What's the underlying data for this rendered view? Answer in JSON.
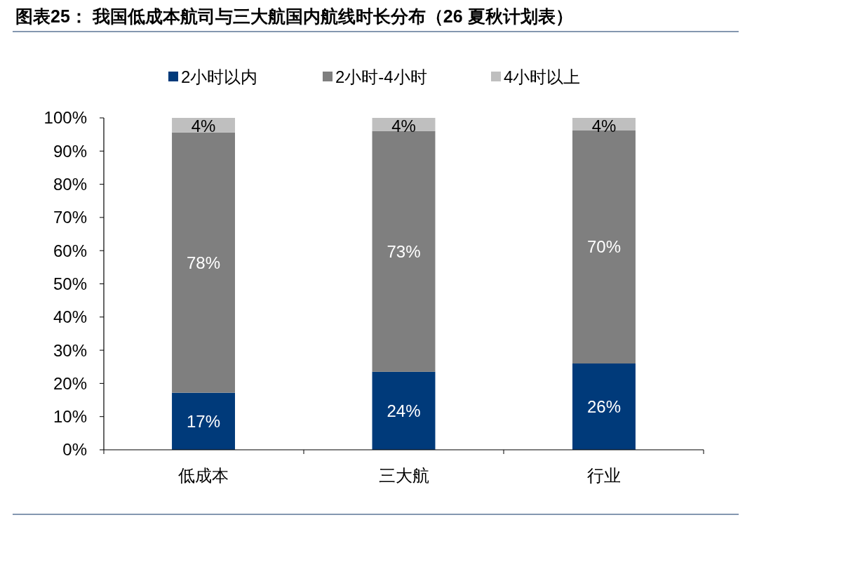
{
  "chart_data": {
    "type": "bar",
    "stacked": true,
    "title": "图表25： 我国低成本航司与三大航国内航线时长分布（26 夏秋计划表）",
    "categories": [
      "低成本",
      "三大航",
      "行业"
    ],
    "series": [
      {
        "name": "2小时以内",
        "color": "#003a7a",
        "values": [
          17.2,
          23.5,
          26.0
        ],
        "value_labels": [
          "17%",
          "24%",
          "26%"
        ]
      },
      {
        "name": "2小时-4小时",
        "color": "#7f7f7f",
        "values": [
          78.4,
          72.5,
          70.2
        ],
        "value_labels": [
          "78%",
          "73%",
          "70%"
        ]
      },
      {
        "name": "4小时以上",
        "color": "#bfbfbf",
        "values": [
          4.4,
          4.0,
          3.8
        ],
        "value_labels": [
          "4%",
          "4%",
          "4%"
        ]
      }
    ],
    "ylim": [
      0,
      100
    ],
    "yticks": [
      {
        "value": 0,
        "label": "0%"
      },
      {
        "value": 10,
        "label": "10%"
      },
      {
        "value": 20,
        "label": "20%"
      },
      {
        "value": 30,
        "label": "30%"
      },
      {
        "value": 40,
        "label": "40%"
      },
      {
        "value": 50,
        "label": "50%"
      },
      {
        "value": 60,
        "label": "60%"
      },
      {
        "value": 70,
        "label": "70%"
      },
      {
        "value": 80,
        "label": "80%"
      },
      {
        "value": 90,
        "label": "90%"
      },
      {
        "value": 100,
        "label": "100%"
      }
    ],
    "legend": "top",
    "grid": false
  }
}
